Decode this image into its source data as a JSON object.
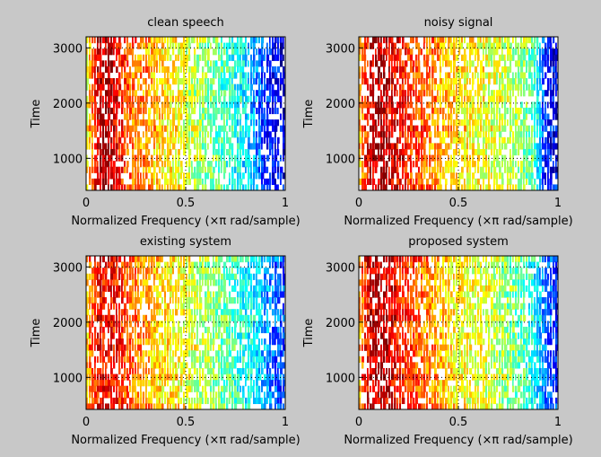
{
  "chart_data": [
    {
      "type": "heatmap",
      "title": "clean speech",
      "xlabel": "Normalized Frequency  (×π rad/sample)",
      "ylabel": "Time",
      "xlim": [
        0,
        1
      ],
      "ylim": [
        420,
        3200
      ],
      "xticks": [
        "0",
        "0.5",
        "1"
      ],
      "yticks": [
        "1000",
        "2000",
        "3000"
      ],
      "grid": true,
      "seed": 11,
      "freq_profile": [
        0.62,
        0.9,
        0.95,
        0.86,
        0.78,
        0.74,
        0.7,
        0.66,
        0.63,
        0.6,
        0.56,
        0.52,
        0.48,
        0.44,
        0.4,
        0.36,
        0.3,
        0.18,
        0.12,
        0.1
      ]
    },
    {
      "type": "heatmap",
      "title": "noisy signal",
      "xlabel": "Normalized Frequency  (×π rad/sample)",
      "ylabel": "Time",
      "xlim": [
        0,
        1
      ],
      "ylim": [
        420,
        3200
      ],
      "xticks": [
        "0",
        "0.5",
        "1"
      ],
      "yticks": [
        "1000",
        "2000",
        "3000"
      ],
      "grid": true,
      "seed": 23,
      "freq_profile": [
        0.7,
        0.92,
        0.95,
        0.9,
        0.86,
        0.82,
        0.78,
        0.74,
        0.7,
        0.66,
        0.64,
        0.62,
        0.6,
        0.58,
        0.56,
        0.54,
        0.5,
        0.42,
        0.14,
        0.1
      ]
    },
    {
      "type": "heatmap",
      "title": "existing system",
      "xlabel": "Normalized Frequency  (×π rad/sample)",
      "ylabel": "Time",
      "xlim": [
        0,
        1
      ],
      "ylim": [
        420,
        3200
      ],
      "xticks": [
        "0",
        "0.5",
        "1"
      ],
      "yticks": [
        "1000",
        "2000",
        "3000"
      ],
      "grid": true,
      "seed": 37,
      "freq_profile": [
        0.7,
        0.86,
        0.88,
        0.84,
        0.78,
        0.74,
        0.7,
        0.66,
        0.64,
        0.62,
        0.58,
        0.55,
        0.52,
        0.48,
        0.44,
        0.4,
        0.36,
        0.3,
        0.22,
        0.16
      ]
    },
    {
      "type": "heatmap",
      "title": "proposed system",
      "xlabel": "Normalized Frequency  (×π rad/sample)",
      "ylabel": "Time",
      "xlim": [
        0,
        1
      ],
      "ylim": [
        420,
        3200
      ],
      "xticks": [
        "0",
        "0.5",
        "1"
      ],
      "yticks": [
        "1000",
        "2000",
        "3000"
      ],
      "grid": true,
      "seed": 53,
      "freq_profile": [
        0.72,
        0.92,
        0.94,
        0.9,
        0.84,
        0.8,
        0.76,
        0.72,
        0.68,
        0.64,
        0.62,
        0.6,
        0.58,
        0.55,
        0.52,
        0.48,
        0.44,
        0.36,
        0.24,
        0.14
      ]
    }
  ],
  "colors": {
    "figure_bg": "#c8c8c8",
    "axes_frame": "#000000",
    "colormap": "jet"
  }
}
